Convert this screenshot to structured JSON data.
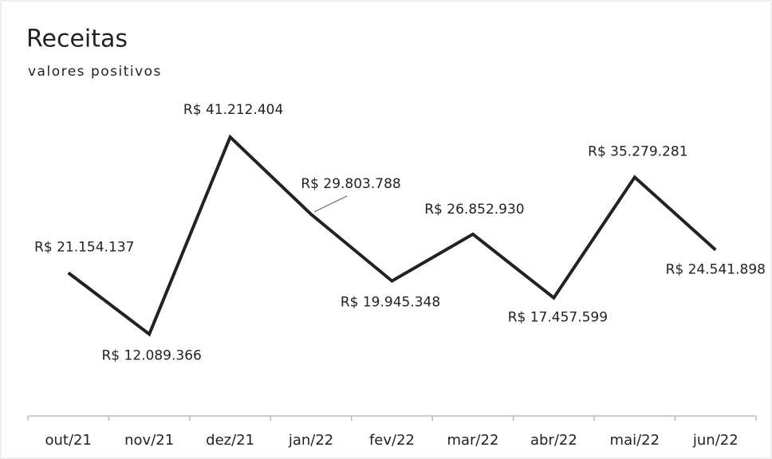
{
  "chart_data": {
    "type": "line",
    "title": "Receitas",
    "subtitle": "valores positivos",
    "categories": [
      "out/21",
      "nov/21",
      "dez/21",
      "jan/22",
      "fev/22",
      "mar/22",
      "abr/22",
      "mai/22",
      "jun/22"
    ],
    "series": [
      {
        "name": "Receitas",
        "color": "#222222",
        "values": [
          21154137,
          12089366,
          41212404,
          29803788,
          19945348,
          26852930,
          17457599,
          35279281,
          24541898
        ],
        "value_labels": [
          "R$ 21.154.137",
          "R$ 12.089.366",
          "R$ 41.212.404",
          "R$ 29.803.788",
          "R$ 19.945.348",
          "R$ 26.852.930",
          "R$ 17.457.599",
          "R$ 35.279.281",
          "R$ 24.541.898"
        ]
      }
    ]
  }
}
